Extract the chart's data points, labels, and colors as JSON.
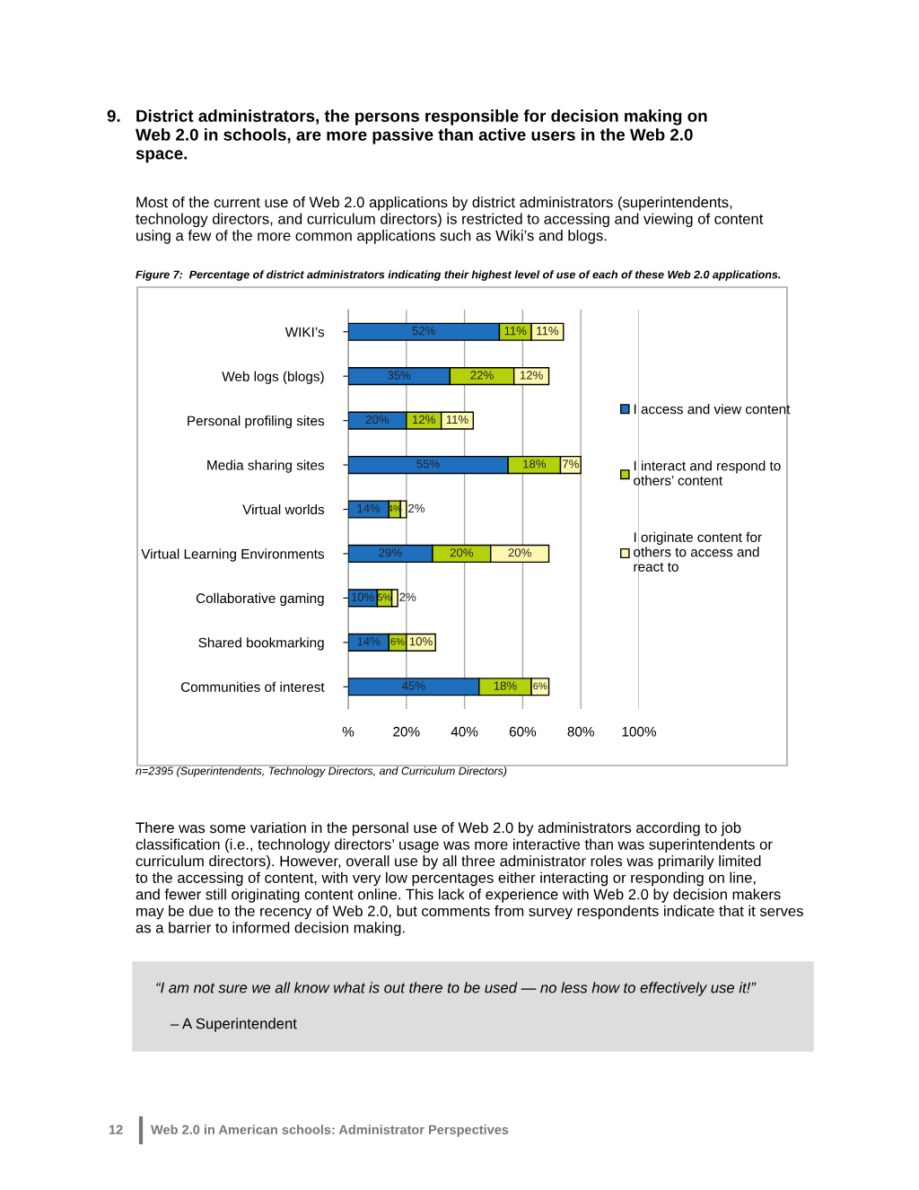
{
  "chart_data": {
    "type": "bar",
    "orientation": "horizontal",
    "stacked": true,
    "title": "Figure 7:  Percentage of district administrators indicating their highest level of use of each of these Web 2.0 applications.",
    "categories": [
      "WIKI’s",
      "Web logs (blogs)",
      "Personal profiling sites",
      "Media sharing sites",
      "Virtual worlds",
      "Virtual Learning Environments",
      "Collaborative gaming",
      "Shared bookmarking",
      "Communities of interest"
    ],
    "series": [
      {
        "name": "I access and view content",
        "color": "#1f6fbf",
        "values": [
          52,
          35,
          20,
          55,
          14,
          29,
          10,
          14,
          45
        ],
        "value_labels": [
          "52%",
          "35%",
          "20%",
          "55%",
          "14%",
          "29%",
          "10%",
          "14%",
          "45%"
        ]
      },
      {
        "name": "I interact and respond to others’ content",
        "color": "#b5d10e",
        "values": [
          11,
          22,
          12,
          18,
          4,
          20,
          5,
          6,
          18
        ],
        "value_labels": [
          "11%",
          "22%",
          "12%",
          "18%",
          "4%",
          "20%",
          "5%",
          "6%",
          "18%"
        ]
      },
      {
        "name": "I originate content for others to access and react to",
        "color": "#fdf8b0",
        "values": [
          11,
          12,
          11,
          7,
          2,
          20,
          2,
          10,
          6
        ],
        "value_labels": [
          "11%",
          "12%",
          "11%",
          "7%",
          "2%",
          "20%",
          "2%",
          "10%",
          "6%"
        ]
      }
    ],
    "xlim": [
      0,
      100
    ],
    "xticks": [
      {
        "value": 0,
        "label": "%"
      },
      {
        "value": 20,
        "label": "20%"
      },
      {
        "value": 40,
        "label": "40%"
      },
      {
        "value": 60,
        "label": "60%"
      },
      {
        "value": 80,
        "label": "80%"
      },
      {
        "value": 100,
        "label": "100%"
      }
    ],
    "grid": "x",
    "legend": "right",
    "annotations": [
      "9.  District administrators, the persons responsible for decision making on Web 2.0 in schools, are more passive than active users in the Web 2.0 space.",
      "Most of the current use of Web 2.0 applications by district administrators (superintendents, technology directors, and curriculum directors) is restricted to accessing and viewing of content using a few of the more common applications such as Wiki’s and blogs.",
      "n=2395 (Superintendents, Technology Directors, and Curriculum Directors)",
      "There was some variation in the personal use of Web 2.0 by administrators according to job classification (i.e., technology directors’ usage was more interactive than was superintendents or curriculum directors). However, overall use by all three administrator roles was primarily limited to the accessing of content, with very low percentages either interacting or responding on line, and fewer still originating content online. This lack of experience with Web 2.0 by decision makers may be due to the recency of Web 2.0, but comments from survey respondents indicate that it serves as a barrier to informed decision making.",
      "“I am not sure we all know what is out there to be used — no less how to effectively use it!”",
      "– A Superintendent",
      "12",
      "Web 2.0 in American schools: Administrator Perspectives"
    ]
  }
}
